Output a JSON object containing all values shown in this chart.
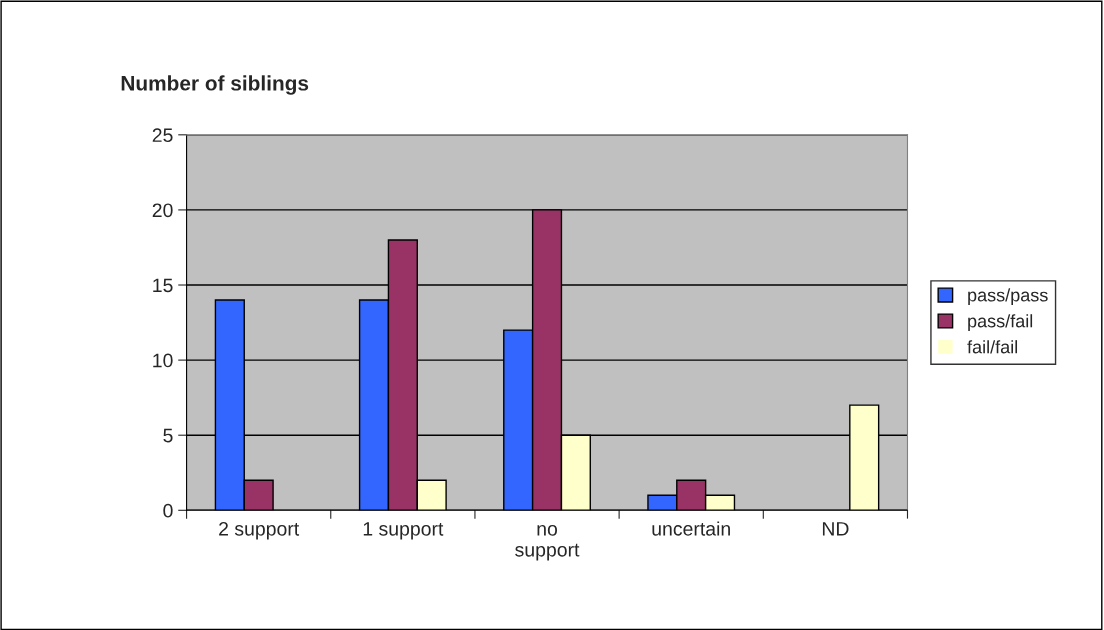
{
  "chart_data": {
    "type": "bar",
    "title": "Number of siblings",
    "categories": [
      "2 support",
      "1 support",
      "no support",
      "uncertain",
      "ND"
    ],
    "series": [
      {
        "name": "pass/pass",
        "color": "#3366ff",
        "values": [
          14,
          14,
          12,
          1,
          0
        ]
      },
      {
        "name": "pass/fail",
        "color": "#993366",
        "values": [
          2,
          18,
          20,
          2,
          0
        ]
      },
      {
        "name": "fail/fail",
        "color": "#ffffcc",
        "values": [
          0,
          2,
          5,
          1,
          7
        ]
      }
    ],
    "ylim": [
      0,
      25
    ],
    "yticks": [
      0,
      5,
      10,
      15,
      20,
      25
    ],
    "grid": "y",
    "legend": "right"
  }
}
